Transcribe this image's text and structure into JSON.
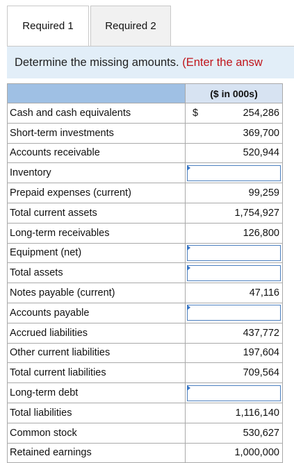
{
  "tabs": [
    {
      "label": "Required 1",
      "active": true
    },
    {
      "label": "Required 2",
      "active": false
    }
  ],
  "banner": {
    "instruction": "Determine the missing amounts.",
    "hint": "(Enter the answ"
  },
  "table": {
    "header": "($ in 000s)",
    "currency_symbol": "$",
    "rows": [
      {
        "label": "Cash and cash equivalents",
        "value": "254,286"
      },
      {
        "label": "Short-term investments",
        "value": "369,700"
      },
      {
        "label": "Accounts receivable",
        "value": "520,944"
      },
      {
        "label": "Inventory",
        "value": ""
      },
      {
        "label": "Prepaid expenses (current)",
        "value": "99,259"
      },
      {
        "label": "Total current assets",
        "value": "1,754,927"
      },
      {
        "label": "Long-term receivables",
        "value": "126,800"
      },
      {
        "label": "Equipment (net)",
        "value": ""
      },
      {
        "label": "Total assets",
        "value": ""
      },
      {
        "label": "Notes payable (current)",
        "value": "47,116"
      },
      {
        "label": "Accounts payable",
        "value": ""
      },
      {
        "label": "Accrued liabilities",
        "value": "437,772"
      },
      {
        "label": "Other current liabilities",
        "value": "197,604"
      },
      {
        "label": "Total current liabilities",
        "value": "709,564"
      },
      {
        "label": "Long-term debt",
        "value": ""
      },
      {
        "label": "Total liabilities",
        "value": "1,116,140"
      },
      {
        "label": "Common stock",
        "value": "530,627"
      },
      {
        "label": "Retained earnings",
        "value": "1,000,000"
      }
    ]
  },
  "colors": {
    "banner_bg": "#e2eef8",
    "hint": "#c0151b",
    "header_bg": "#d7e3f2",
    "header_label_bg": "#9fc0e4",
    "input_border": "#4b7fbf"
  }
}
